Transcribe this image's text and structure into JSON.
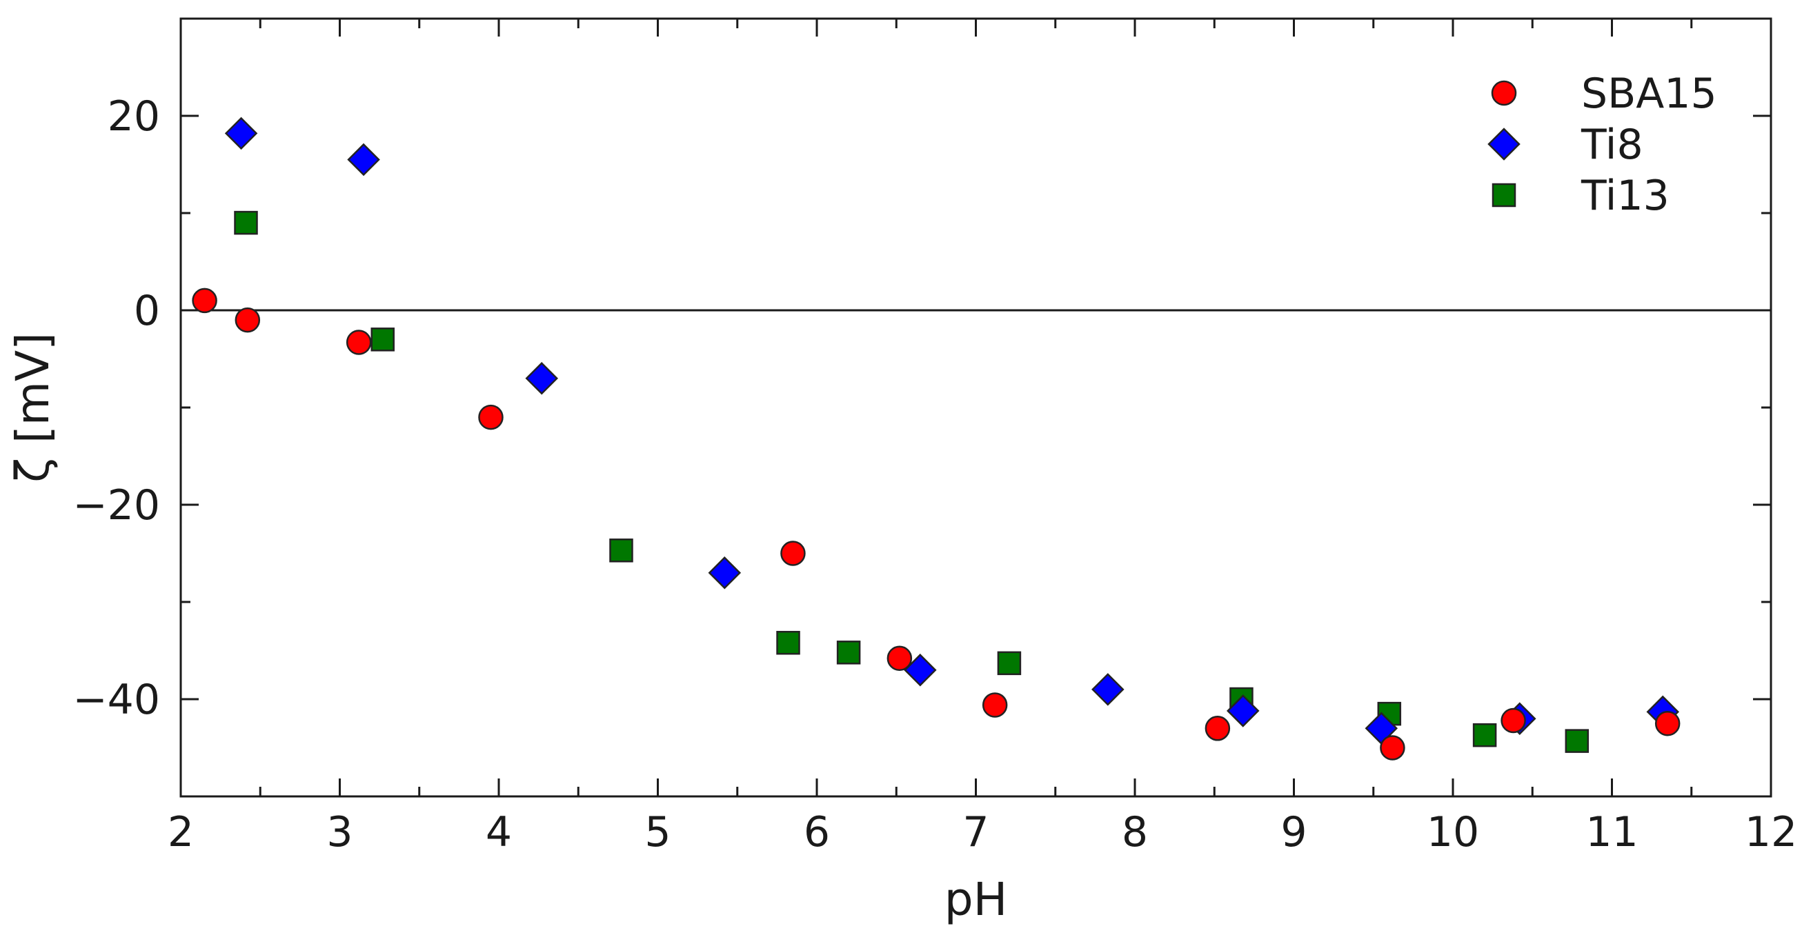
{
  "chart_data": {
    "type": "scatter",
    "xlabel": "pH",
    "ylabel": "ζ [mV]",
    "xlim": [
      2,
      12
    ],
    "ylim": [
      -50,
      30
    ],
    "x_ticks": [
      2,
      3,
      4,
      5,
      6,
      7,
      8,
      9,
      10,
      11,
      12
    ],
    "y_ticks": [
      -40,
      -20,
      0,
      20
    ],
    "grid": false,
    "zero_line": true,
    "legend_position": "top-right",
    "series": [
      {
        "name": "SBA15",
        "marker": "circle",
        "color": "#ff0000",
        "points": [
          [
            2.15,
            1.0
          ],
          [
            2.42,
            -1.0
          ],
          [
            3.12,
            -3.3
          ],
          [
            3.95,
            -11.0
          ],
          [
            5.85,
            -25.0
          ],
          [
            6.52,
            -35.8
          ],
          [
            7.12,
            -40.6
          ],
          [
            8.52,
            -43.0
          ],
          [
            9.62,
            -45.0
          ],
          [
            10.38,
            -42.2
          ],
          [
            11.35,
            -42.5
          ]
        ]
      },
      {
        "name": "Ti8",
        "marker": "diamond",
        "color": "#0000ff",
        "points": [
          [
            2.38,
            18.2
          ],
          [
            3.15,
            15.5
          ],
          [
            4.27,
            -7.0
          ],
          [
            5.42,
            -27.0
          ],
          [
            6.65,
            -37.0
          ],
          [
            7.83,
            -39.0
          ],
          [
            8.68,
            -41.2
          ],
          [
            9.55,
            -43.0
          ],
          [
            10.42,
            -42.0
          ],
          [
            11.32,
            -41.3
          ]
        ]
      },
      {
        "name": "Ti13",
        "marker": "square",
        "color": "#007700",
        "points": [
          [
            2.41,
            9.0
          ],
          [
            3.27,
            -3.0
          ],
          [
            4.77,
            -24.7
          ],
          [
            5.82,
            -34.2
          ],
          [
            6.2,
            -35.2
          ],
          [
            7.21,
            -36.3
          ],
          [
            8.67,
            -40.0
          ],
          [
            9.6,
            -41.5
          ],
          [
            10.2,
            -43.7
          ],
          [
            10.78,
            -44.3
          ]
        ]
      }
    ]
  }
}
